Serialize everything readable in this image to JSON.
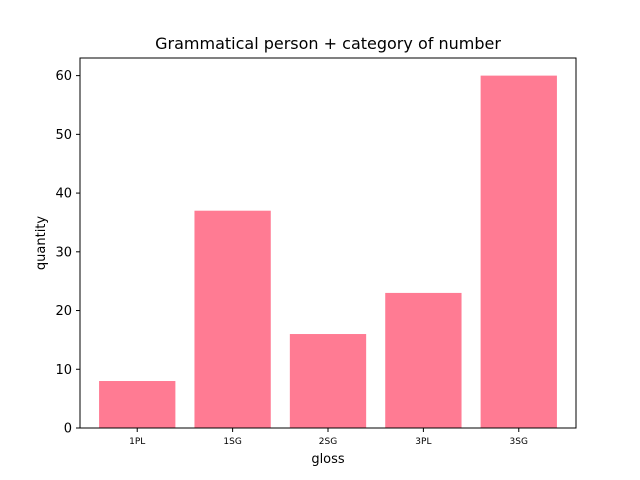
{
  "chart_data": {
    "type": "bar",
    "title": "Grammatical person + category of number",
    "xlabel": "gloss",
    "ylabel": "quantity",
    "categories": [
      "1PL",
      "1SG",
      "2SG",
      "3PL",
      "3SG"
    ],
    "values": [
      8,
      37,
      16,
      23,
      60
    ],
    "ylim": [
      0,
      63
    ],
    "yticks": [
      0,
      10,
      20,
      30,
      40,
      50,
      60
    ],
    "bar_color": "#ff7b93",
    "grid": false,
    "legend": "none"
  }
}
